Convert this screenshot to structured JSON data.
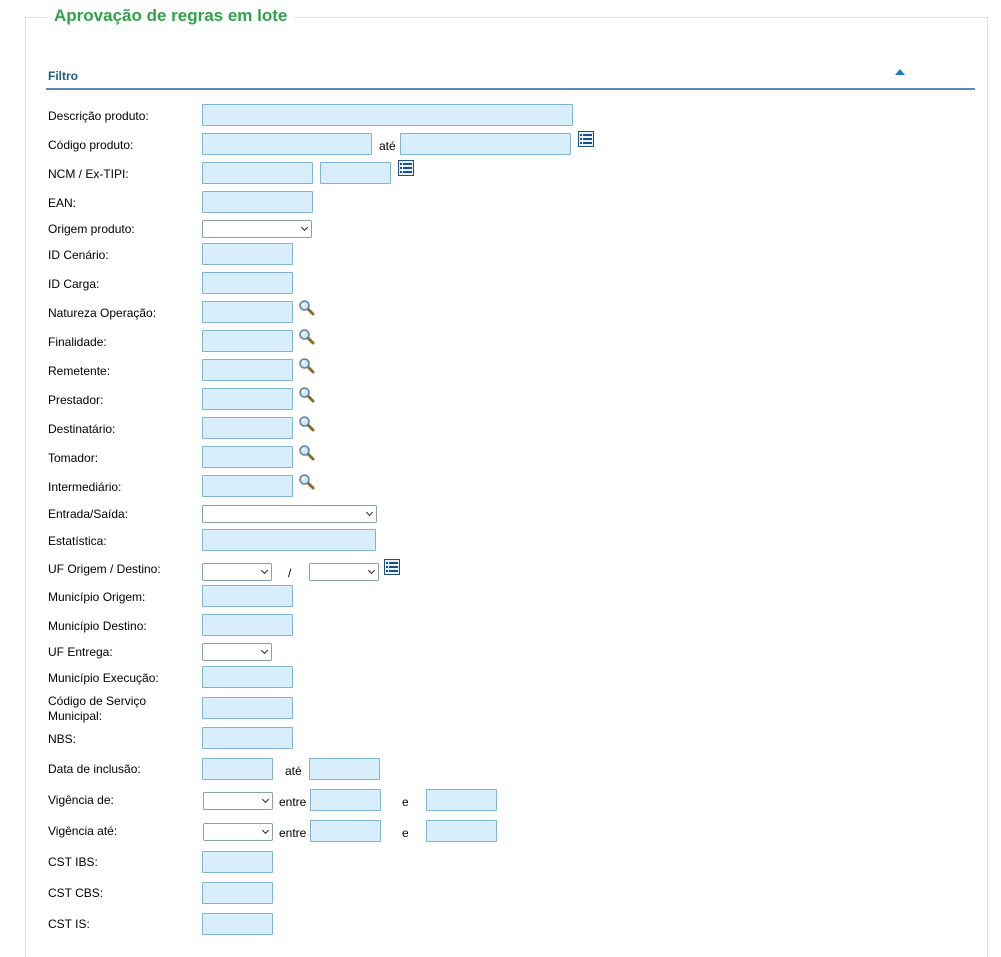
{
  "title": "Aprovação de regras em lote",
  "filter": {
    "title": "Filtro",
    "collapse_icon": "triangle-up-icon",
    "descricao_produto": {
      "label": "Descrição produto:",
      "value": ""
    },
    "codigo_produto": {
      "label": "Código produto:",
      "from": "",
      "ate_label": "até",
      "to": "",
      "icon": "list-icon"
    },
    "ncm": {
      "label": "NCM / Ex-TIPI:",
      "ncm": "",
      "ex": "",
      "icon": "list-icon"
    },
    "ean": {
      "label": "EAN:",
      "value": ""
    },
    "origem_produto": {
      "label": "Origem produto:",
      "selected": ""
    },
    "id_cenario": {
      "label": "ID Cenário:",
      "value": ""
    },
    "id_carga": {
      "label": "ID Carga:",
      "value": ""
    },
    "natureza_operacao": {
      "label": "Natureza Operação:",
      "value": "",
      "icon": "magnifier-icon"
    },
    "finalidade": {
      "label": "Finalidade:",
      "value": "",
      "icon": "magnifier-icon"
    },
    "remetente": {
      "label": "Remetente:",
      "value": "",
      "icon": "magnifier-icon"
    },
    "prestador": {
      "label": "Prestador:",
      "value": "",
      "icon": "magnifier-icon"
    },
    "destinatario": {
      "label": "Destinatário:",
      "value": "",
      "icon": "magnifier-icon"
    },
    "tomador": {
      "label": "Tomador:",
      "value": "",
      "icon": "magnifier-icon"
    },
    "intermediario": {
      "label": "Intermediário:",
      "value": "",
      "icon": "magnifier-icon"
    },
    "entrada_saida": {
      "label": "Entrada/Saída:",
      "selected": ""
    },
    "estatistica": {
      "label": "Estatística:",
      "value": ""
    },
    "uf_origem_destino": {
      "label": "UF Origem / Destino:",
      "separator": "/",
      "origem": "",
      "destino": "",
      "icon": "list-icon"
    },
    "municipio_origem": {
      "label": "Município Origem:",
      "value": ""
    },
    "municipio_destino": {
      "label": "Município Destino:",
      "value": ""
    },
    "uf_entrega": {
      "label": "UF Entrega:",
      "selected": ""
    },
    "municipio_execucao": {
      "label": "Município Execução:",
      "value": ""
    },
    "codigo_servico_municipal": {
      "label_line1": "Código de Serviço",
      "label_line2": "Municipal:",
      "value": ""
    },
    "nbs": {
      "label": "NBS:",
      "value": ""
    },
    "data_inclusao": {
      "label": "Data de inclusão:",
      "from": "",
      "ate_label": "até",
      "to": ""
    },
    "vigencia_de": {
      "label": "Vigência de:",
      "selected": "",
      "entre_label": "entre",
      "from": "",
      "e_label": "e",
      "to": ""
    },
    "vigencia_ate": {
      "label": "Vigência até:",
      "selected": "",
      "entre_label": "entre",
      "from": "",
      "e_label": "e",
      "to": ""
    },
    "cst_ibs": {
      "label": "CST IBS:",
      "value": ""
    },
    "cst_cbs": {
      "label": "CST CBS:",
      "value": ""
    },
    "cst_is": {
      "label": "CST IS:",
      "value": ""
    }
  }
}
